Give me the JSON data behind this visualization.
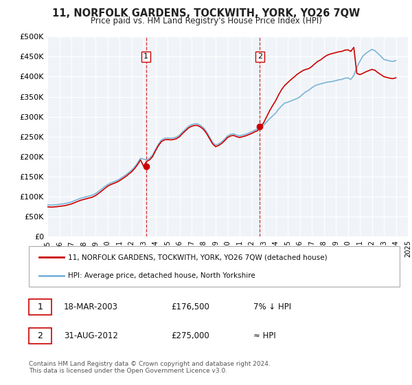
{
  "title": "11, NORFOLK GARDENS, TOCKWITH, YORK, YO26 7QW",
  "subtitle": "Price paid vs. HM Land Registry's House Price Index (HPI)",
  "ylim": [
    0,
    500000
  ],
  "yticks": [
    0,
    50000,
    100000,
    150000,
    200000,
    250000,
    300000,
    350000,
    400000,
    450000,
    500000
  ],
  "ytick_labels": [
    "£0",
    "£50K",
    "£100K",
    "£150K",
    "£200K",
    "£250K",
    "£300K",
    "£350K",
    "£400K",
    "£450K",
    "£500K"
  ],
  "background_color": "#ffffff",
  "plot_bg_color": "#f0f4f8",
  "grid_color": "#ffffff",
  "hpi_color": "#7ab4d8",
  "price_color": "#cc0000",
  "marker1_year": 2003.2,
  "marker1_value": 176500,
  "marker1_label": "1",
  "marker1_date": "18-MAR-2003",
  "marker1_price": "£176,500",
  "marker1_hpi": "7% ↓ HPI",
  "marker2_year": 2012.67,
  "marker2_value": 275000,
  "marker2_label": "2",
  "marker2_date": "31-AUG-2012",
  "marker2_price": "£275,000",
  "marker2_hpi": "≈ HPI",
  "legend_line1": "11, NORFOLK GARDENS, TOCKWITH, YORK, YO26 7QW (detached house)",
  "legend_line2": "HPI: Average price, detached house, North Yorkshire",
  "footer": "Contains HM Land Registry data © Crown copyright and database right 2024.\nThis data is licensed under the Open Government Licence v3.0.",
  "hpi_data_years": [
    1995.0,
    1995.25,
    1995.5,
    1995.75,
    1996.0,
    1996.25,
    1996.5,
    1996.75,
    1997.0,
    1997.25,
    1997.5,
    1997.75,
    1998.0,
    1998.25,
    1998.5,
    1998.75,
    1999.0,
    1999.25,
    1999.5,
    1999.75,
    2000.0,
    2000.25,
    2000.5,
    2000.75,
    2001.0,
    2001.25,
    2001.5,
    2001.75,
    2002.0,
    2002.25,
    2002.5,
    2002.75,
    2003.0,
    2003.25,
    2003.5,
    2003.75,
    2004.0,
    2004.25,
    2004.5,
    2004.75,
    2005.0,
    2005.25,
    2005.5,
    2005.75,
    2006.0,
    2006.25,
    2006.5,
    2006.75,
    2007.0,
    2007.25,
    2007.5,
    2007.75,
    2008.0,
    2008.25,
    2008.5,
    2008.75,
    2009.0,
    2009.25,
    2009.5,
    2009.75,
    2010.0,
    2010.25,
    2010.5,
    2010.75,
    2011.0,
    2011.25,
    2011.5,
    2011.75,
    2012.0,
    2012.25,
    2012.5,
    2012.75,
    2013.0,
    2013.25,
    2013.5,
    2013.75,
    2014.0,
    2014.25,
    2014.5,
    2014.75,
    2015.0,
    2015.25,
    2015.5,
    2015.75,
    2016.0,
    2016.25,
    2016.5,
    2016.75,
    2017.0,
    2017.25,
    2017.5,
    2017.75,
    2018.0,
    2018.25,
    2018.5,
    2018.75,
    2019.0,
    2019.25,
    2019.5,
    2019.75,
    2020.0,
    2020.25,
    2020.5,
    2020.75,
    2021.0,
    2021.25,
    2021.5,
    2021.75,
    2022.0,
    2022.25,
    2022.5,
    2022.75,
    2023.0,
    2023.25,
    2023.5,
    2023.75,
    2024.0
  ],
  "hpi_data_values": [
    80000,
    79000,
    79500,
    80000,
    81000,
    82000,
    83000,
    85000,
    87000,
    90000,
    93000,
    96000,
    98000,
    100000,
    102000,
    104000,
    108000,
    113000,
    119000,
    125000,
    130000,
    134000,
    137000,
    140000,
    144000,
    149000,
    154000,
    160000,
    166000,
    174000,
    184000,
    196000,
    194000,
    192000,
    196000,
    204000,
    218000,
    232000,
    242000,
    246000,
    247000,
    246000,
    247000,
    249000,
    254000,
    262000,
    269000,
    276000,
    280000,
    282000,
    282000,
    278000,
    272000,
    262000,
    249000,
    236000,
    229000,
    232000,
    237000,
    244000,
    252000,
    256000,
    257000,
    254000,
    252000,
    254000,
    256000,
    259000,
    262000,
    266000,
    269000,
    274000,
    279000,
    287000,
    295000,
    302000,
    309000,
    319000,
    327000,
    334000,
    336000,
    339000,
    342000,
    345000,
    349000,
    356000,
    362000,
    366000,
    372000,
    377000,
    380000,
    382000,
    384000,
    386000,
    387000,
    388000,
    390000,
    392000,
    393000,
    396000,
    397000,
    393000,
    403000,
    423000,
    438000,
    451000,
    458000,
    463000,
    468000,
    465000,
    458000,
    451000,
    443000,
    441000,
    439000,
    438000,
    440000
  ],
  "red_data_years": [
    1995.0,
    1995.25,
    1995.5,
    1995.75,
    1996.0,
    1996.25,
    1996.5,
    1996.75,
    1997.0,
    1997.25,
    1997.5,
    1997.75,
    1998.0,
    1998.25,
    1998.5,
    1998.75,
    1999.0,
    1999.25,
    1999.5,
    1999.75,
    2000.0,
    2000.25,
    2000.5,
    2000.75,
    2001.0,
    2001.25,
    2001.5,
    2001.75,
    2002.0,
    2002.25,
    2002.5,
    2002.75,
    2003.0,
    2003.25,
    2003.5,
    2003.75,
    2004.0,
    2004.25,
    2004.5,
    2004.75,
    2005.0,
    2005.25,
    2005.5,
    2005.75,
    2006.0,
    2006.25,
    2006.5,
    2006.75,
    2007.0,
    2007.25,
    2007.5,
    2007.75,
    2008.0,
    2008.25,
    2008.5,
    2008.75,
    2009.0,
    2009.25,
    2009.5,
    2009.75,
    2010.0,
    2010.25,
    2010.5,
    2010.75,
    2011.0,
    2011.25,
    2011.5,
    2011.75,
    2012.0,
    2012.25,
    2012.5,
    2012.75,
    2013.0,
    2013.25,
    2013.5,
    2013.75,
    2014.0,
    2014.25,
    2014.5,
    2014.75,
    2015.0,
    2015.25,
    2015.5,
    2015.75,
    2016.0,
    2016.25,
    2016.5,
    2016.75,
    2017.0,
    2017.25,
    2017.5,
    2017.75,
    2018.0,
    2018.25,
    2018.5,
    2018.75,
    2019.0,
    2019.25,
    2019.5,
    2019.75,
    2020.0,
    2020.25,
    2020.5,
    2020.75,
    2021.0,
    2021.25,
    2021.5,
    2021.75,
    2022.0,
    2022.25,
    2022.5,
    2022.75,
    2023.0,
    2023.25,
    2023.5,
    2023.75,
    2024.0
  ],
  "red_data_values": [
    75000,
    74000,
    74500,
    75000,
    76000,
    77000,
    78000,
    80000,
    82000,
    85000,
    88000,
    91000,
    93000,
    95000,
    97000,
    99000,
    103000,
    108000,
    114000,
    120000,
    126000,
    130000,
    133000,
    136000,
    140000,
    145000,
    150000,
    156000,
    162000,
    170000,
    180000,
    192000,
    176500,
    188000,
    192000,
    200000,
    215000,
    228000,
    238000,
    242000,
    243000,
    242000,
    243000,
    245000,
    250000,
    258000,
    265000,
    272000,
    276000,
    278000,
    278000,
    274000,
    268000,
    258000,
    245000,
    232000,
    225000,
    228000,
    233000,
    240000,
    248000,
    252000,
    253000,
    250000,
    248000,
    250000,
    252000,
    255000,
    258000,
    262000,
    265000,
    275000,
    285000,
    300000,
    315000,
    328000,
    340000,
    355000,
    368000,
    378000,
    385000,
    392000,
    398000,
    405000,
    410000,
    415000,
    418000,
    420000,
    425000,
    432000,
    438000,
    442000,
    448000,
    453000,
    456000,
    458000,
    460000,
    462000,
    463000,
    466000,
    467000,
    463000,
    473000,
    408000,
    405000,
    408000,
    412000,
    415000,
    418000,
    416000,
    410000,
    405000,
    400000,
    398000,
    396000,
    395000,
    397000
  ]
}
